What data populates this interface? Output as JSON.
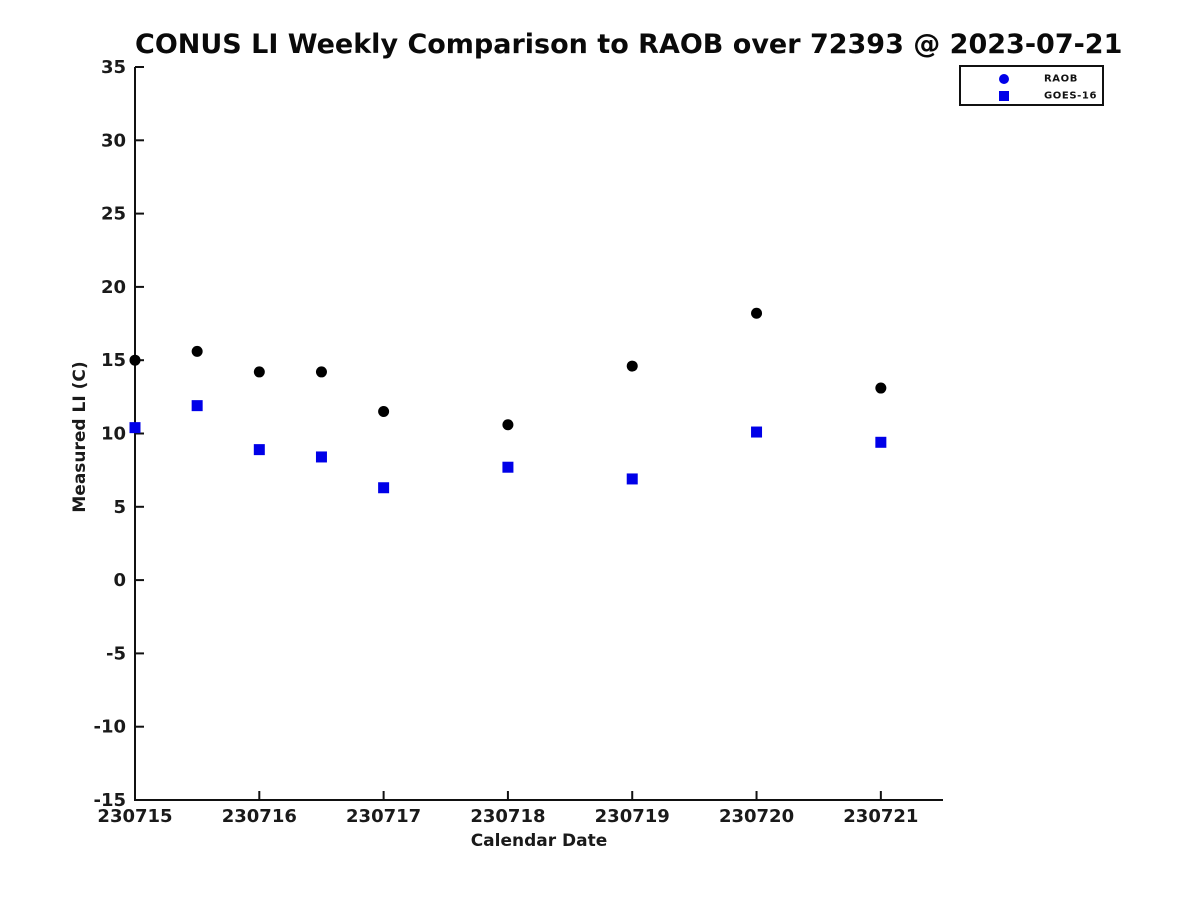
{
  "chart_data": {
    "type": "scatter",
    "title": "CONUS LI Weekly Comparison to RAOB over 72393 @ 2023-07-21",
    "xlabel": "Calendar Date",
    "ylabel": "Measured LI (C)",
    "xlim": [
      230715,
      230721.5
    ],
    "ylim": [
      -15,
      35
    ],
    "x_ticks": [
      230715,
      230716,
      230717,
      230718,
      230719,
      230720,
      230721
    ],
    "x_tick_labels": [
      "230715",
      "230716",
      "230717",
      "230718",
      "230719",
      "230720",
      "230721"
    ],
    "y_ticks": [
      -15,
      -10,
      -5,
      0,
      5,
      10,
      15,
      20,
      25,
      30,
      35
    ],
    "y_tick_labels": [
      "-15",
      "-10",
      "-5",
      "0",
      "5",
      "10",
      "15",
      "20",
      "25",
      "30",
      "35"
    ],
    "grid": false,
    "legend_position": "top-right",
    "axis_color": "#111111",
    "series": [
      {
        "name": "RAOB",
        "marker": "circle",
        "plot_color": "#000000",
        "legend_color": "#0000e8",
        "points": [
          [
            230715.0,
            15.0
          ],
          [
            230715.5,
            15.6
          ],
          [
            230716.0,
            14.2
          ],
          [
            230716.5,
            14.2
          ],
          [
            230717.0,
            11.5
          ],
          [
            230718.0,
            10.6
          ],
          [
            230719.0,
            14.6
          ],
          [
            230720.0,
            18.2
          ],
          [
            230721.0,
            13.1
          ]
        ]
      },
      {
        "name": "GOES-16",
        "marker": "square",
        "plot_color": "#0000e8",
        "legend_color": "#0000e8",
        "points": [
          [
            230715.0,
            10.4
          ],
          [
            230715.5,
            11.9
          ],
          [
            230716.0,
            8.9
          ],
          [
            230716.5,
            8.4
          ],
          [
            230717.0,
            6.3
          ],
          [
            230718.0,
            7.7
          ],
          [
            230719.0,
            6.9
          ],
          [
            230720.0,
            10.1
          ],
          [
            230721.0,
            9.4
          ]
        ]
      }
    ]
  }
}
